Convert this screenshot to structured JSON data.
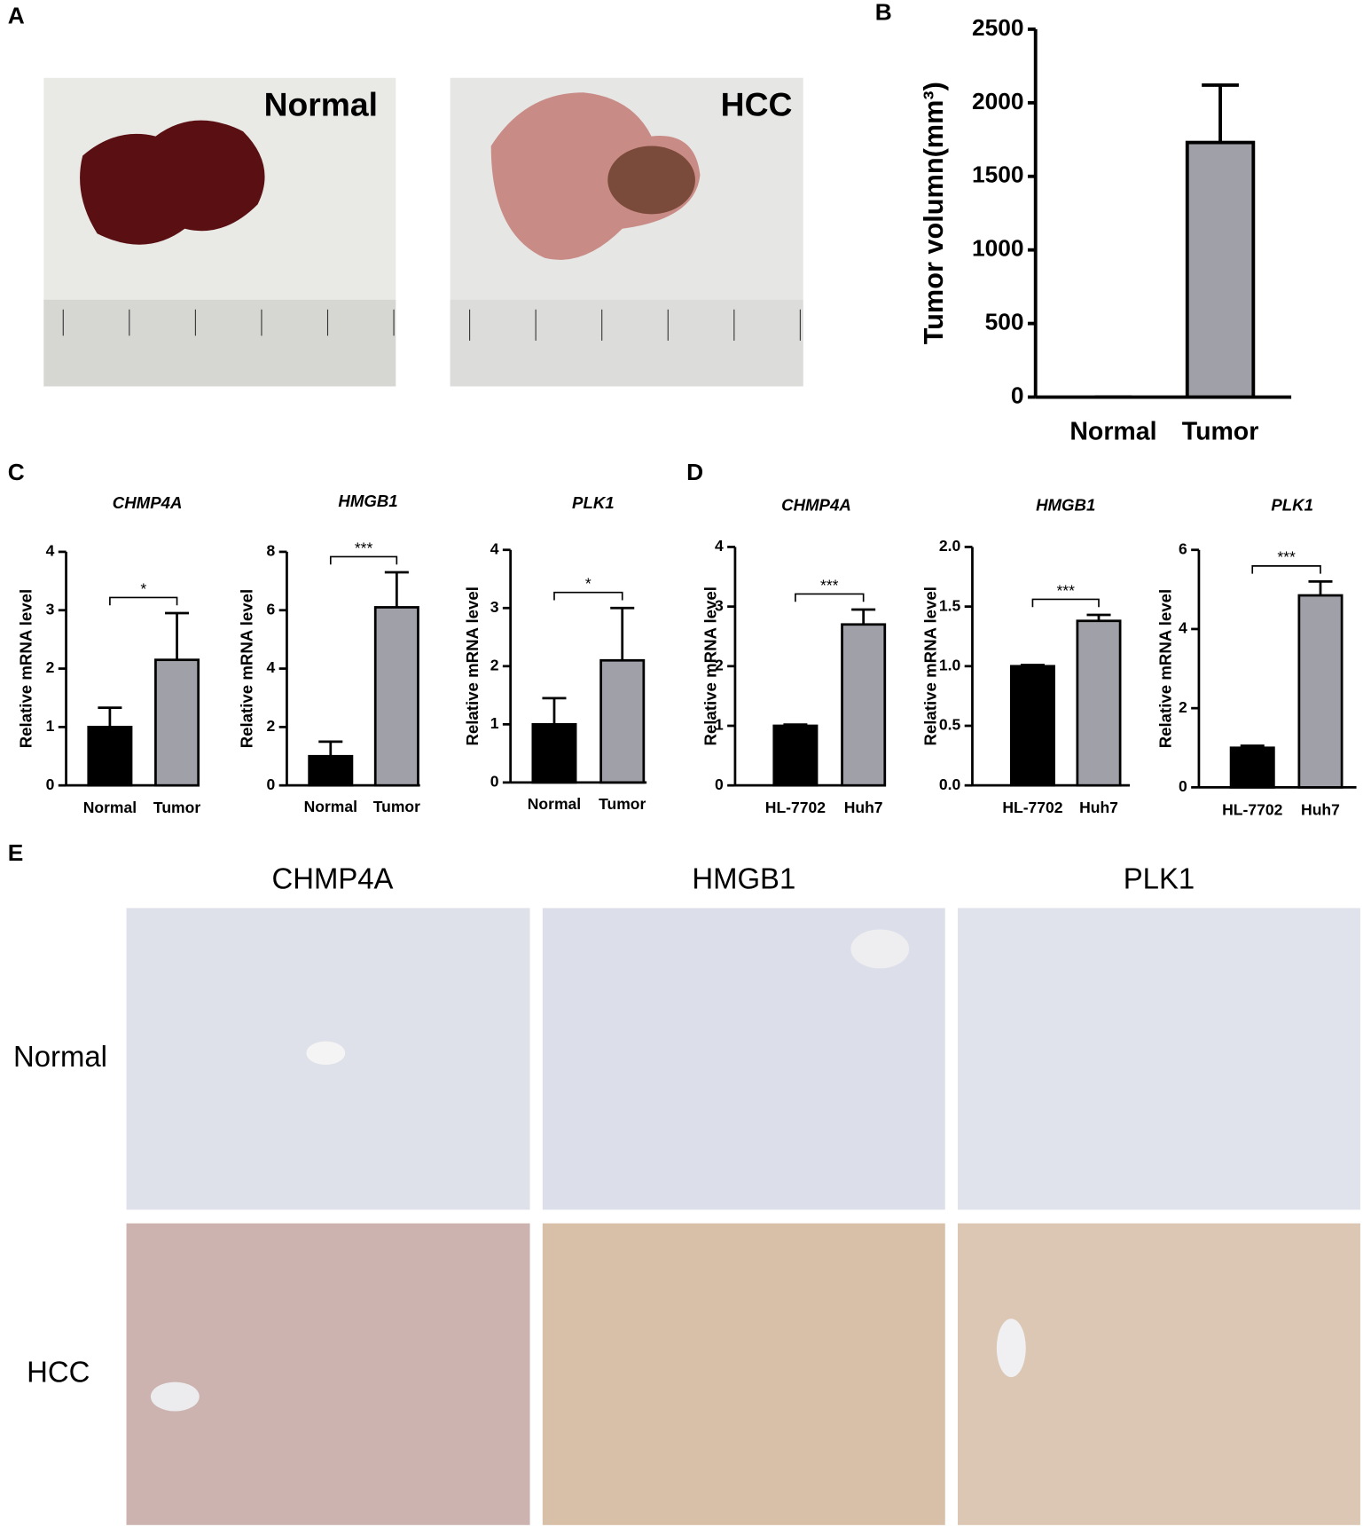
{
  "panels": {
    "a": {
      "letter": "A",
      "photo_labels": [
        "Normal",
        "HCC"
      ]
    },
    "b": {
      "letter": "B"
    },
    "c": {
      "letter": "C"
    },
    "d": {
      "letter": "D"
    },
    "e": {
      "letter": "E",
      "columns": [
        "CHMP4A",
        "HMGB1",
        "PLK1"
      ],
      "rows": [
        "Normal",
        "HCC"
      ]
    }
  },
  "chart_data": [
    {
      "type": "bar",
      "ylabel": "Tumor volumn(mm³)",
      "categories": [
        "Normal",
        "Tumor"
      ],
      "values": [
        0,
        1730
      ],
      "errors": [
        0,
        390
      ],
      "colors": [
        "#000000",
        "#a0a0a8"
      ],
      "ylim": [
        0,
        2500
      ],
      "yticks": [
        0,
        500,
        1000,
        1500,
        2000,
        2500
      ]
    },
    {
      "type": "bar",
      "title": "CHMP4A",
      "ylabel": "Relative mRNA level",
      "categories": [
        "Normal",
        "Tumor"
      ],
      "values": [
        1.0,
        2.15
      ],
      "errors": [
        0.33,
        0.8
      ],
      "colors": [
        "#000000",
        "#a0a0a8"
      ],
      "ylim": [
        0,
        4
      ],
      "yticks": [
        0,
        1,
        2,
        3,
        4
      ],
      "annotation": "*"
    },
    {
      "type": "bar",
      "title": "HMGB1",
      "ylabel": "Relative mRNA level",
      "categories": [
        "Normal",
        "Tumor"
      ],
      "values": [
        1.0,
        6.1
      ],
      "errors": [
        0.5,
        1.2
      ],
      "colors": [
        "#000000",
        "#a0a0a8"
      ],
      "ylim": [
        0,
        8
      ],
      "yticks": [
        0,
        2,
        4,
        6,
        8
      ],
      "annotation": "***"
    },
    {
      "type": "bar",
      "title": "PLK1",
      "ylabel": "Relative mRNA level",
      "categories": [
        "Normal",
        "Tumor"
      ],
      "values": [
        1.0,
        2.1
      ],
      "errors": [
        0.45,
        0.9
      ],
      "colors": [
        "#000000",
        "#a0a0a8"
      ],
      "ylim": [
        0,
        4
      ],
      "yticks": [
        0,
        1,
        2,
        3,
        4
      ],
      "annotation": "*"
    },
    {
      "type": "bar",
      "title": "CHMP4A",
      "ylabel": "Relative mRNA level",
      "categories": [
        "HL-7702",
        "Huh7"
      ],
      "values": [
        1.0,
        2.7
      ],
      "errors": [
        0.02,
        0.25
      ],
      "colors": [
        "#000000",
        "#a0a0a8"
      ],
      "ylim": [
        0,
        4
      ],
      "yticks": [
        0,
        1,
        2,
        3,
        4
      ],
      "annotation": "***"
    },
    {
      "type": "bar",
      "title": "HMGB1",
      "ylabel": "Relative mRNA level",
      "categories": [
        "HL-7702",
        "Huh7"
      ],
      "values": [
        1.0,
        1.38
      ],
      "errors": [
        0.01,
        0.05
      ],
      "colors": [
        "#000000",
        "#a0a0a8"
      ],
      "ylim": [
        0,
        2
      ],
      "yticks": [
        {
          "value": 0,
          "label": "0.0"
        },
        0.5,
        {
          "value": 1,
          "label": "1.0"
        },
        1.5,
        {
          "value": 2,
          "label": "2.0"
        }
      ],
      "annotation": "***"
    },
    {
      "type": "bar",
      "title": "PLK1",
      "ylabel": "Relative mRNA level",
      "categories": [
        "HL-7702",
        "Huh7"
      ],
      "values": [
        1.0,
        4.85
      ],
      "errors": [
        0.05,
        0.35
      ],
      "colors": [
        "#000000",
        "#a0a0a8"
      ],
      "ylim": [
        0,
        6
      ],
      "yticks": [
        0,
        2,
        4,
        6
      ],
      "annotation": "***"
    }
  ]
}
